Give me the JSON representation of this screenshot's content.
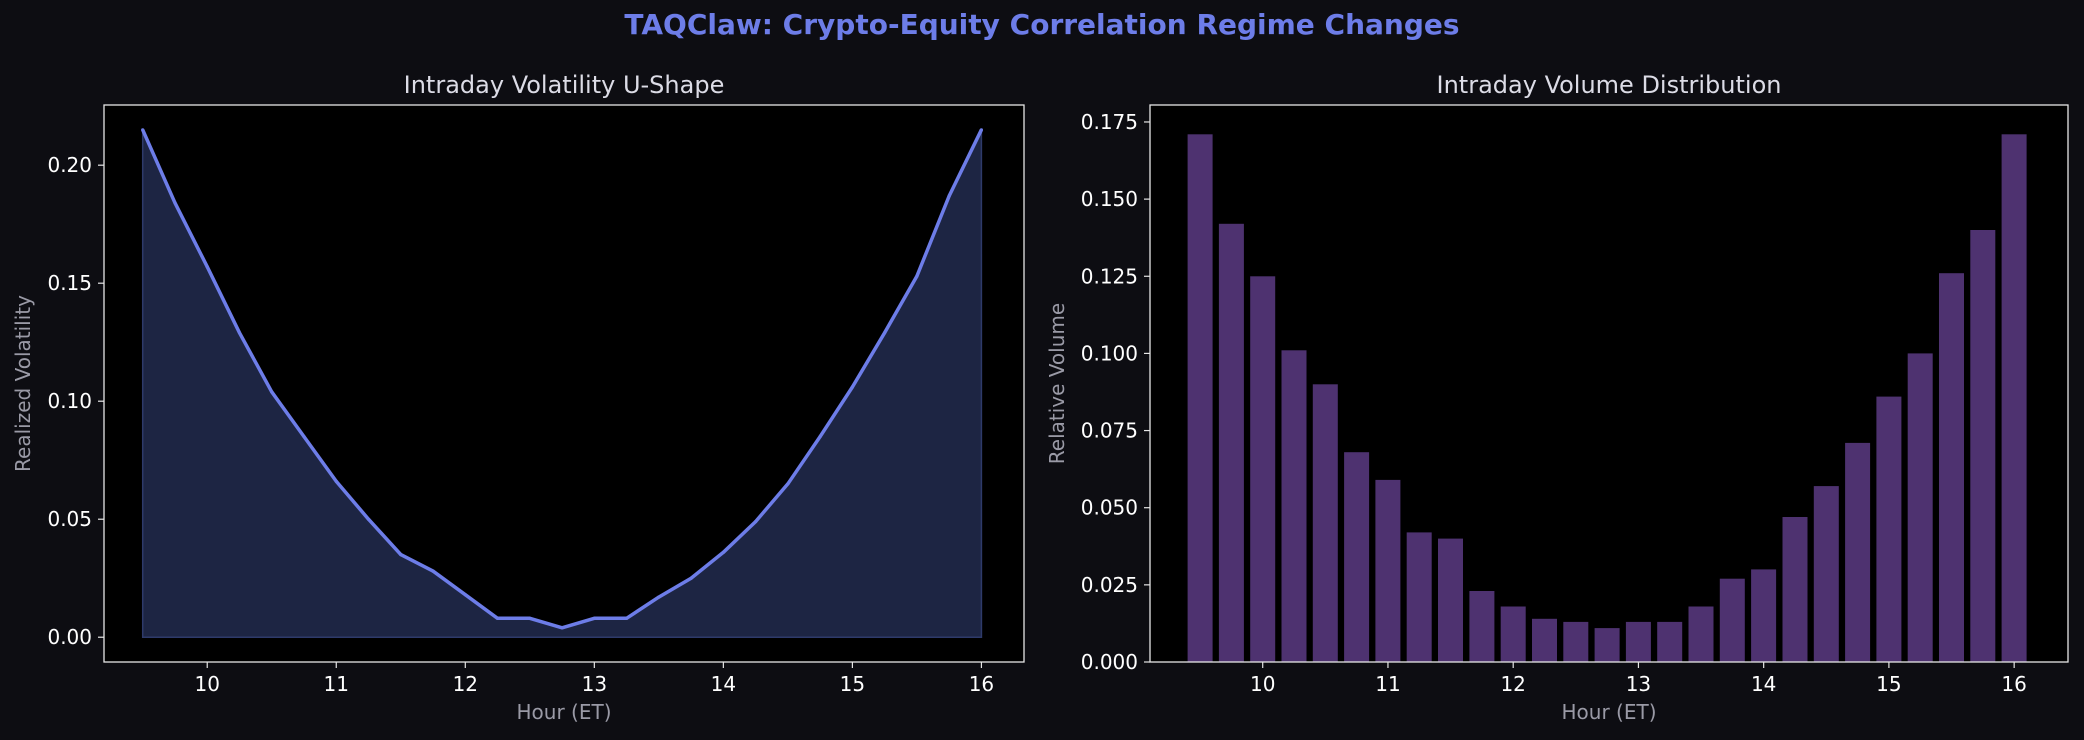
{
  "suptitle": "TAQClaw: Crypto-Equity Correlation Regime Changes",
  "colors": {
    "background": "#0d0d12",
    "plot_bg": "#000000",
    "title": "#6d7de8",
    "line": "#6d7de8",
    "fill": "#1f2747",
    "bar": "#4e3270"
  },
  "chart_data": [
    {
      "type": "area",
      "title": "Intraday Volatility U-Shape",
      "xlabel": "Hour (ET)",
      "ylabel": "Realized Volatility",
      "xlim": [
        9.2,
        16.33
      ],
      "ylim": [
        -0.0105,
        0.2255
      ],
      "xticks": [
        10,
        11,
        12,
        13,
        14,
        15,
        16
      ],
      "yticks": [
        "0.00",
        "0.05",
        "0.10",
        "0.15",
        "0.20"
      ],
      "grid": false,
      "x": [
        9.5,
        9.75,
        10,
        10.25,
        10.5,
        10.75,
        11,
        11.25,
        11.5,
        11.75,
        12,
        12.25,
        12.5,
        12.75,
        13,
        13.25,
        13.5,
        13.75,
        14,
        14.25,
        14.5,
        14.75,
        15,
        15.25,
        15.5,
        15.75,
        16
      ],
      "y": [
        0.215,
        0.184,
        0.157,
        0.129,
        0.104,
        0.085,
        0.066,
        0.05,
        0.035,
        0.028,
        0.018,
        0.008,
        0.008,
        0.004,
        0.008,
        0.008,
        0.017,
        0.025,
        0.036,
        0.049,
        0.065,
        0.085,
        0.106,
        0.129,
        0.153,
        0.187,
        0.215
      ]
    },
    {
      "type": "bar",
      "title": "Intraday Volume Distribution",
      "xlabel": "Hour (ET)",
      "ylabel": "Relative Volume",
      "xlim": [
        9.1,
        16.43
      ],
      "ylim": [
        0,
        0.1805
      ],
      "xticks": [
        10,
        11,
        12,
        13,
        14,
        15,
        16
      ],
      "yticks": [
        "0.000",
        "0.025",
        "0.050",
        "0.075",
        "0.100",
        "0.125",
        "0.150",
        "0.175"
      ],
      "grid": false,
      "x": [
        9.5,
        9.75,
        10,
        10.25,
        10.5,
        10.75,
        11,
        11.25,
        11.5,
        11.75,
        12,
        12.25,
        12.5,
        12.75,
        13,
        13.25,
        13.5,
        13.75,
        14,
        14.25,
        14.5,
        14.75,
        15,
        15.25,
        15.5,
        15.75,
        16
      ],
      "values": [
        0.171,
        0.142,
        0.125,
        0.101,
        0.09,
        0.068,
        0.059,
        0.042,
        0.04,
        0.023,
        0.018,
        0.014,
        0.013,
        0.011,
        0.013,
        0.013,
        0.018,
        0.027,
        0.03,
        0.047,
        0.057,
        0.071,
        0.086,
        0.1,
        0.126,
        0.14,
        0.171
      ],
      "bar_width": 0.2
    }
  ]
}
